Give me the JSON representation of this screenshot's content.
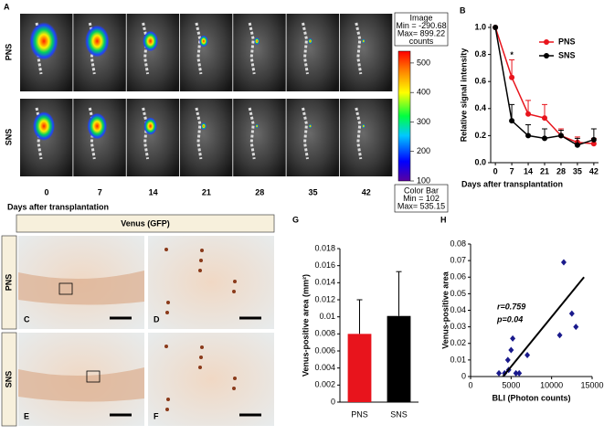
{
  "figure": {
    "panels": [
      "A",
      "B",
      "G",
      "H"
    ],
    "rows_a": [
      "PNS",
      "SNS"
    ],
    "days": [
      "0",
      "7",
      "14",
      "21",
      "28",
      "35",
      "42"
    ],
    "days_label": "Days after transplantation",
    "image_box": [
      "Image",
      "Min = -290.68",
      "Max= 899.22",
      "counts"
    ],
    "colorbar_box": [
      "Color Bar",
      "Min = 102",
      "Max= 535.15"
    ],
    "colorbar": {
      "lim": [
        100,
        540
      ],
      "ticks": [
        100,
        200,
        300,
        400,
        500
      ]
    },
    "histo_header": "Venus (GFP)",
    "rows_histo": [
      "PNS",
      "SNS"
    ],
    "tiles": [
      "C",
      "D",
      "E",
      "F"
    ]
  },
  "chart_data": [
    {
      "type": "line",
      "x": [
        0,
        7,
        14,
        21,
        28,
        35,
        42
      ],
      "xlim": [
        -2,
        44
      ],
      "xticks": [
        0,
        7,
        14,
        21,
        28,
        35,
        42
      ],
      "ylim": [
        0,
        1.0
      ],
      "yticks": [
        {
          "value": 0,
          "label": "0.0"
        },
        {
          "value": 0.2,
          "label": "0.2"
        },
        {
          "value": 0.4,
          "label": "0.4"
        },
        {
          "value": 0.6,
          "label": "0.6"
        },
        {
          "value": 0.8,
          "label": "0.8"
        },
        {
          "value": 1.0,
          "label": "1.0"
        }
      ],
      "xlabel": "Days after transplantation",
      "ylabel": "Relative signal intensity",
      "annotation": "*",
      "series": [
        {
          "name": "PNS",
          "color": "#e8141c",
          "values": [
            1.0,
            0.63,
            0.36,
            0.33,
            0.2,
            0.15,
            0.14
          ],
          "errors": [
            0,
            0.13,
            0.1,
            0.1,
            0.05,
            0.04,
            0.04
          ]
        },
        {
          "name": "SNS",
          "color": "#000000",
          "values": [
            1.0,
            0.31,
            0.2,
            0.18,
            0.2,
            0.13,
            0.17
          ],
          "errors": [
            0,
            0.12,
            0.08,
            0.07,
            0.04,
            0.05,
            0.08
          ]
        }
      ]
    },
    {
      "type": "bar",
      "categories": [
        "PNS",
        "SNS"
      ],
      "values": [
        0.008,
        0.0101
      ],
      "errors": [
        0.004,
        0.0052
      ],
      "colors": [
        "#e8141c",
        "#000000"
      ],
      "ylim": [
        0,
        0.018
      ],
      "yticks": [
        0,
        0.002,
        0.004,
        0.006,
        0.008,
        0.01,
        0.012,
        0.014,
        0.016,
        0.018
      ],
      "ylabel": "Venus-positive area (mm²)"
    },
    {
      "type": "scatter",
      "x": [
        3500,
        4200,
        4700,
        4600,
        5000,
        5200,
        5600,
        6000,
        7000,
        11000,
        11500,
        12500,
        13000
      ],
      "values": [
        0.002,
        0.002,
        0.004,
        0.01,
        0.016,
        0.023,
        0.002,
        0.002,
        0.013,
        0.025,
        0.069,
        0.038,
        0.03
      ],
      "color": "#1a1a8c",
      "xlim": [
        0,
        15000
      ],
      "xticks": [
        0,
        5000,
        10000,
        15000
      ],
      "ylim": [
        0,
        0.08
      ],
      "yticks": [
        0,
        0.01,
        0.02,
        0.03,
        0.04,
        0.05,
        0.06,
        0.07,
        0.08
      ],
      "trendline": {
        "x": [
          4000,
          14000
        ],
        "y": [
          0,
          0.06
        ]
      },
      "annotations": [
        "r=0.759",
        "p=0.04"
      ],
      "xlabel": "BLI (Photon counts)",
      "ylabel": "Venus-positive area"
    }
  ]
}
